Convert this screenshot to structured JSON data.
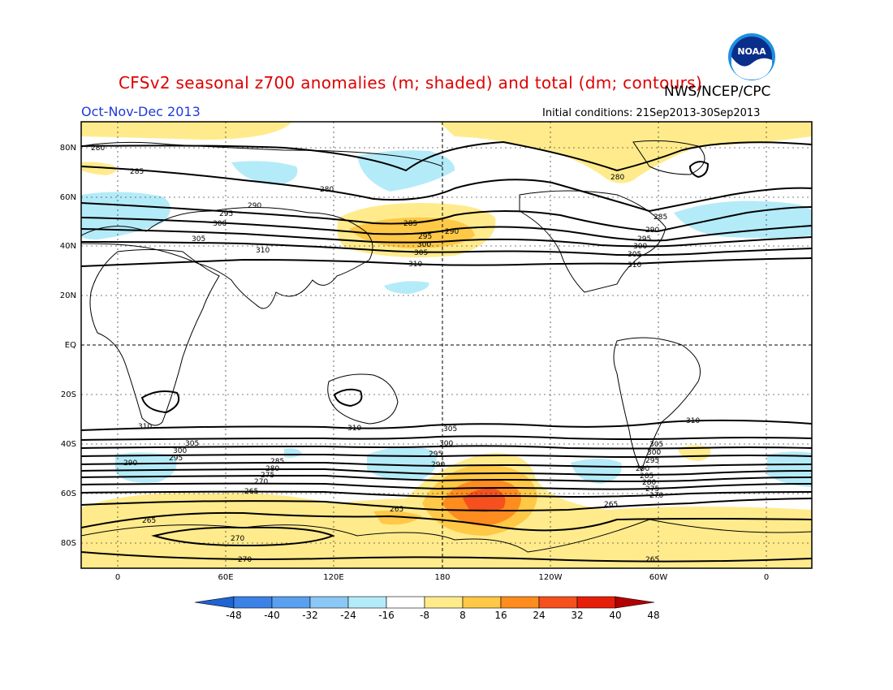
{
  "header": {
    "title": "CFSv2 seasonal z700 anomalies (m; shaded) and total (dm; contours)",
    "agency": "NWS/NCEP/CPC",
    "period": "Oct-Nov-Dec 2013",
    "initial_conditions": "Initial conditions: 21Sep2013-30Sep2013",
    "logo_text": "NOAA"
  },
  "axes": {
    "lat_labels": [
      "80N",
      "60N",
      "40N",
      "20N",
      "EQ",
      "20S",
      "40S",
      "60S",
      "80S"
    ],
    "lon_labels": [
      "0",
      "60E",
      "120E",
      "180",
      "120W",
      "60W",
      "0"
    ]
  },
  "legend": {
    "ticks": [
      "-48",
      "-40",
      "-32",
      "-24",
      "-16",
      "-8",
      "8",
      "16",
      "24",
      "32",
      "40",
      "48"
    ],
    "colors": [
      "#1e64d2",
      "#3c82e6",
      "#5aa0f0",
      "#8cc8f5",
      "#b4ebf8",
      "#ffffff",
      "#ffeb8c",
      "#ffc846",
      "#ff8c1e",
      "#f5501e",
      "#e61e0a",
      "#b40000"
    ]
  },
  "contour_labels": {
    "nh_left": [
      "280",
      "285",
      "290",
      "295",
      "300",
      "305",
      "310"
    ],
    "nh_right": [
      "280",
      "285",
      "290",
      "295",
      "300",
      "305",
      "310"
    ],
    "nh_center": [
      "280",
      "285",
      "290",
      "295",
      "300",
      "305",
      "310"
    ],
    "sh_left": [
      "310",
      "305",
      "300",
      "295",
      "290",
      "285",
      "280",
      "275",
      "270",
      "265",
      "265",
      "270",
      "270"
    ],
    "sh_center": [
      "310",
      "305",
      "300",
      "295",
      "290",
      "265"
    ],
    "sh_right": [
      "310",
      "305",
      "300",
      "295",
      "290",
      "285",
      "280",
      "275",
      "270",
      "265",
      "265"
    ]
  },
  "colors": {
    "title": "#e00000",
    "period": "#1f3bd6",
    "positive_light": "#ffeb8c",
    "positive_mid": "#ffc846",
    "positive_strong": "#ff8c1e",
    "positive_max": "#f5501e",
    "negative_light": "#b4ebf8"
  }
}
